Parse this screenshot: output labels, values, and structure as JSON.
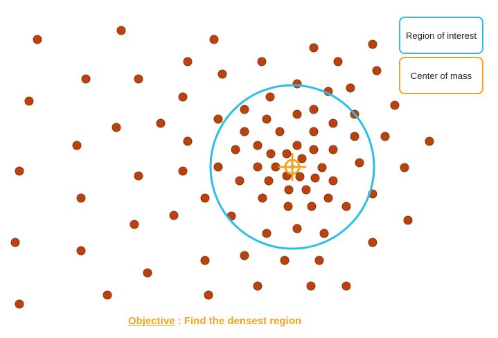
{
  "colors": {
    "point": "#b8430f",
    "point_stroke": "#8f3209",
    "region": "#2bbfe3",
    "center": "#f4a21f",
    "objective_text": "#f4a21f"
  },
  "legend": {
    "region": {
      "label": "Region of interest",
      "icon": "cyan-outline-box"
    },
    "center": {
      "label": "Center of mass",
      "icon": "orange-outline-box"
    }
  },
  "objective": {
    "label": "Objective",
    "separator": " : ",
    "text": "Find the densest region"
  },
  "center_marker": {
    "icon": "crosshair-target-icon"
  }
}
